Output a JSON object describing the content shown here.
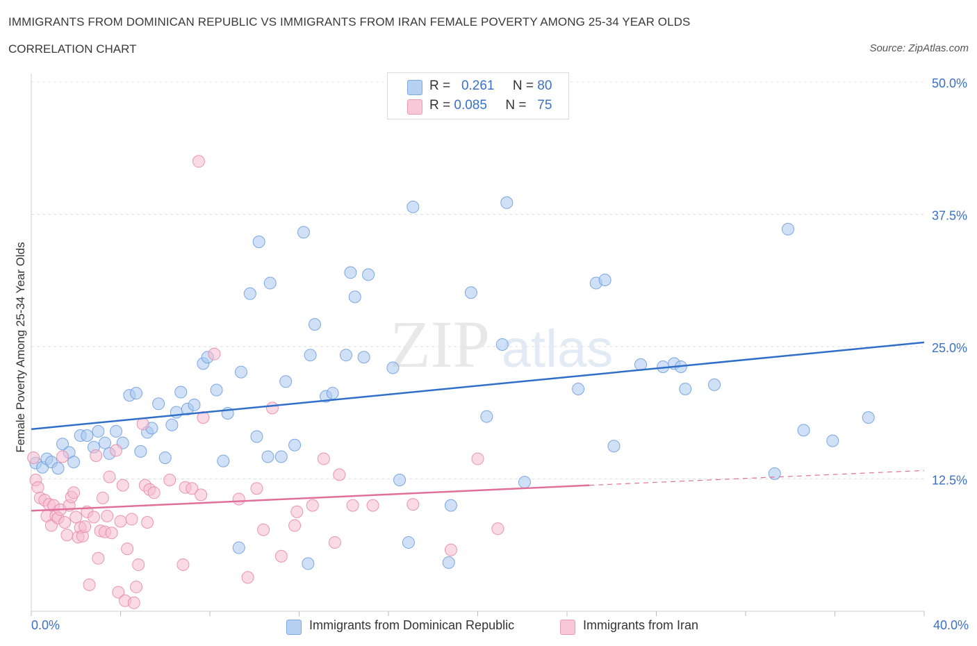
{
  "title": "IMMIGRANTS FROM DOMINICAN REPUBLIC VS IMMIGRANTS FROM IRAN FEMALE POVERTY AMONG 25-34 YEAR OLDS",
  "subtitle": "CORRELATION CHART",
  "source": "Source: ZipAtlas.com",
  "watermark": {
    "zip": "ZIP",
    "atlas": "atlas"
  },
  "legend_top": {
    "rows": [
      {
        "r_label": "R =",
        "r_value": "0.261",
        "n_label": "N =",
        "n_value": "80"
      },
      {
        "r_label": "R =",
        "r_value": "0.085",
        "n_label": "N =",
        "n_value": "75"
      }
    ]
  },
  "colors": {
    "blue_fill": "#aac8f0",
    "blue_stroke": "#6e9fe0",
    "blue_line": "#2f6fc8",
    "pink_fill": "#f5bcd0",
    "pink_stroke": "#e88aaa",
    "pink_line": "#e0709a",
    "tick_label": "#3a70c8",
    "grid": "#dddddd"
  },
  "chart_data": {
    "type": "scatter",
    "xlabel": "",
    "ylabel": "Female Poverty Among 25-34 Year Olds",
    "xlim": [
      0,
      40
    ],
    "ylim": [
      0,
      50
    ],
    "x_tick_labels": [
      "0.0%",
      "40.0%"
    ],
    "y_ticks": [
      12.5,
      25.0,
      37.5,
      50.0
    ],
    "y_tick_labels": [
      "12.5%",
      "25.0%",
      "37.5%",
      "50.0%"
    ],
    "grid": "horizontal dashed",
    "legend_placement": "bottom-center",
    "series": [
      {
        "name": "Immigrants from Dominican Republic",
        "color": "blue",
        "points": [
          [
            0.2,
            14.0
          ],
          [
            0.5,
            13.6
          ],
          [
            0.7,
            14.4
          ],
          [
            0.9,
            14.1
          ],
          [
            1.2,
            13.5
          ],
          [
            1.4,
            15.8
          ],
          [
            1.7,
            15.0
          ],
          [
            1.9,
            14.1
          ],
          [
            2.2,
            16.6
          ],
          [
            2.5,
            16.6
          ],
          [
            2.8,
            15.5
          ],
          [
            3.0,
            17.0
          ],
          [
            3.3,
            15.9
          ],
          [
            3.5,
            14.9
          ],
          [
            3.8,
            17.0
          ],
          [
            4.1,
            15.9
          ],
          [
            4.4,
            20.4
          ],
          [
            4.7,
            20.6
          ],
          [
            4.9,
            15.1
          ],
          [
            5.2,
            16.9
          ],
          [
            5.4,
            17.3
          ],
          [
            5.7,
            19.6
          ],
          [
            6.0,
            14.5
          ],
          [
            6.3,
            17.6
          ],
          [
            6.5,
            18.8
          ],
          [
            6.7,
            20.7
          ],
          [
            7.0,
            19.1
          ],
          [
            7.3,
            19.5
          ],
          [
            7.7,
            23.4
          ],
          [
            7.9,
            24.0
          ],
          [
            8.3,
            20.9
          ],
          [
            8.6,
            14.2
          ],
          [
            8.8,
            18.7
          ],
          [
            9.3,
            6.0
          ],
          [
            9.4,
            22.6
          ],
          [
            9.8,
            30.0
          ],
          [
            10.1,
            16.5
          ],
          [
            10.2,
            34.9
          ],
          [
            10.6,
            14.6
          ],
          [
            10.7,
            31.0
          ],
          [
            11.2,
            14.6
          ],
          [
            11.4,
            21.7
          ],
          [
            11.8,
            15.7
          ],
          [
            12.2,
            35.8
          ],
          [
            12.4,
            4.5
          ],
          [
            12.5,
            24.2
          ],
          [
            12.7,
            27.1
          ],
          [
            13.2,
            20.3
          ],
          [
            13.5,
            20.6
          ],
          [
            14.1,
            24.2
          ],
          [
            14.3,
            32.0
          ],
          [
            14.5,
            29.7
          ],
          [
            14.9,
            24.0
          ],
          [
            15.1,
            31.8
          ],
          [
            16.2,
            23.0
          ],
          [
            16.5,
            12.4
          ],
          [
            16.9,
            6.5
          ],
          [
            17.1,
            38.2
          ],
          [
            18.7,
            4.6
          ],
          [
            18.8,
            10.0
          ],
          [
            19.7,
            30.1
          ],
          [
            20.4,
            18.4
          ],
          [
            21.1,
            25.2
          ],
          [
            21.3,
            38.6
          ],
          [
            22.1,
            12.2
          ],
          [
            24.5,
            21.0
          ],
          [
            25.3,
            31.0
          ],
          [
            25.7,
            31.3
          ],
          [
            26.1,
            15.6
          ],
          [
            27.3,
            23.3
          ],
          [
            28.3,
            23.1
          ],
          [
            28.8,
            23.4
          ],
          [
            29.1,
            23.1
          ],
          [
            29.3,
            21.0
          ],
          [
            30.6,
            21.4
          ],
          [
            33.3,
            13.0
          ],
          [
            33.9,
            36.1
          ],
          [
            34.6,
            17.1
          ],
          [
            35.9,
            16.1
          ],
          [
            37.5,
            18.3
          ]
        ]
      },
      {
        "name": "Immigrants from Iran",
        "color": "pink",
        "points": [
          [
            0.1,
            14.5
          ],
          [
            0.2,
            12.4
          ],
          [
            0.3,
            11.7
          ],
          [
            0.4,
            10.7
          ],
          [
            0.6,
            10.5
          ],
          [
            0.7,
            9.0
          ],
          [
            0.8,
            10.1
          ],
          [
            0.9,
            8.1
          ],
          [
            1.0,
            10.0
          ],
          [
            1.1,
            9.0
          ],
          [
            1.2,
            8.8
          ],
          [
            1.3,
            9.6
          ],
          [
            1.4,
            14.6
          ],
          [
            1.5,
            8.4
          ],
          [
            1.6,
            7.2
          ],
          [
            1.7,
            10.0
          ],
          [
            1.8,
            10.8
          ],
          [
            1.9,
            11.2
          ],
          [
            2.0,
            8.9
          ],
          [
            2.1,
            7.0
          ],
          [
            2.2,
            7.9
          ],
          [
            2.3,
            7.1
          ],
          [
            2.4,
            8.0
          ],
          [
            2.5,
            9.4
          ],
          [
            2.6,
            2.5
          ],
          [
            2.8,
            8.9
          ],
          [
            2.9,
            14.7
          ],
          [
            3.0,
            5.0
          ],
          [
            3.1,
            7.6
          ],
          [
            3.2,
            10.7
          ],
          [
            3.3,
            7.5
          ],
          [
            3.4,
            9.0
          ],
          [
            3.5,
            12.7
          ],
          [
            3.6,
            7.4
          ],
          [
            3.8,
            15.2
          ],
          [
            3.9,
            1.8
          ],
          [
            4.0,
            8.5
          ],
          [
            4.1,
            11.9
          ],
          [
            4.2,
            1.0
          ],
          [
            4.3,
            5.9
          ],
          [
            4.5,
            8.7
          ],
          [
            4.6,
            0.8
          ],
          [
            4.7,
            2.3
          ],
          [
            4.8,
            4.4
          ],
          [
            5.0,
            17.7
          ],
          [
            5.1,
            11.9
          ],
          [
            5.2,
            8.4
          ],
          [
            5.3,
            11.5
          ],
          [
            5.5,
            11.2
          ],
          [
            6.2,
            12.4
          ],
          [
            6.8,
            4.4
          ],
          [
            6.9,
            11.7
          ],
          [
            7.2,
            11.6
          ],
          [
            7.6,
            11.0
          ],
          [
            7.7,
            18.3
          ],
          [
            8.2,
            24.3
          ],
          [
            7.5,
            42.5
          ],
          [
            9.3,
            10.6
          ],
          [
            9.7,
            3.2
          ],
          [
            10.1,
            11.6
          ],
          [
            10.4,
            7.7
          ],
          [
            10.8,
            19.2
          ],
          [
            11.2,
            5.2
          ],
          [
            11.8,
            8.1
          ],
          [
            11.9,
            9.4
          ],
          [
            12.6,
            10.0
          ],
          [
            13.1,
            14.4
          ],
          [
            13.6,
            6.5
          ],
          [
            13.8,
            12.9
          ],
          [
            14.4,
            10.0
          ],
          [
            15.3,
            10.0
          ],
          [
            17.1,
            10.1
          ],
          [
            18.8,
            5.8
          ],
          [
            20.0,
            14.4
          ],
          [
            20.9,
            7.8
          ]
        ]
      }
    ],
    "trendlines": [
      {
        "series": "Immigrants from Dominican Republic",
        "x": [
          0,
          40
        ],
        "y": [
          17.2,
          25.4
        ],
        "style": "solid"
      },
      {
        "series": "Immigrants from Iran",
        "x": [
          0,
          25
        ],
        "y": [
          9.5,
          11.9
        ],
        "style": "solid"
      },
      {
        "series": "Immigrants from Iran",
        "x": [
          25,
          40
        ],
        "y": [
          11.9,
          13.3
        ],
        "style": "dashed"
      }
    ]
  }
}
